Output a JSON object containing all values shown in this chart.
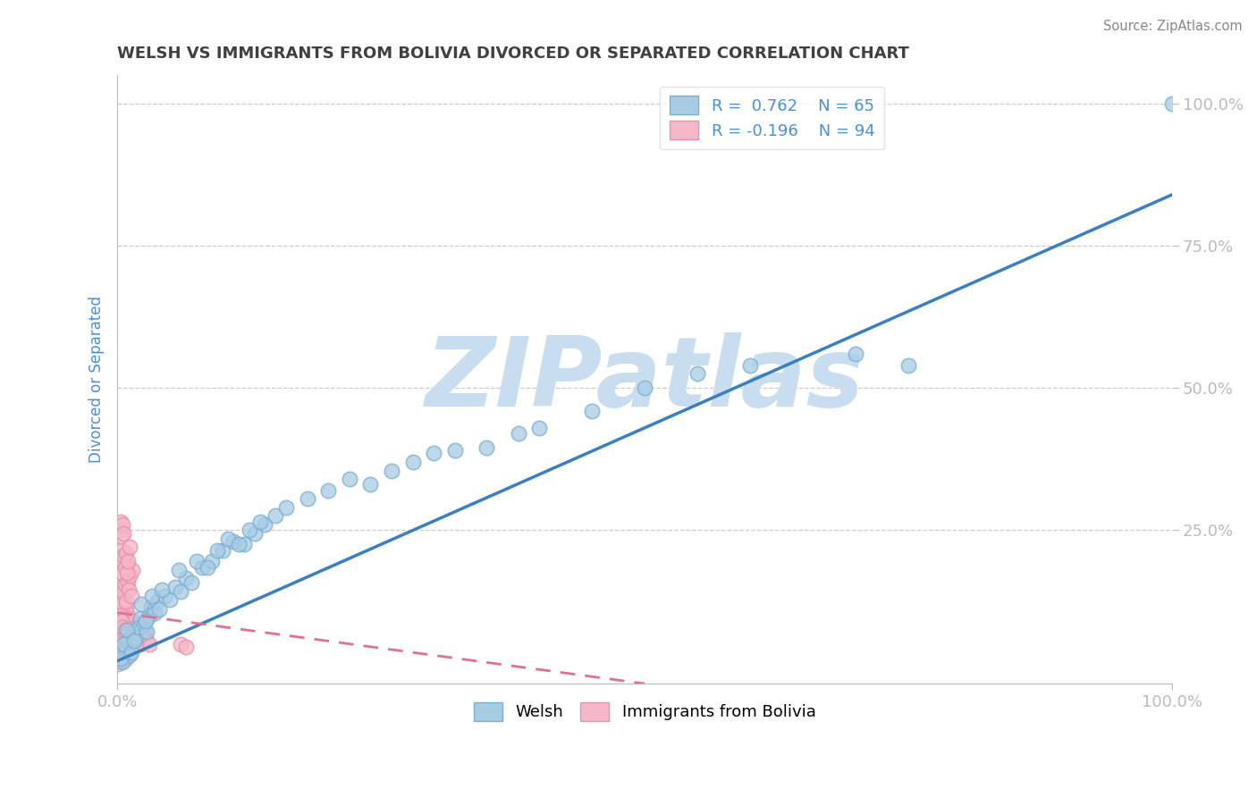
{
  "title": "WELSH VS IMMIGRANTS FROM BOLIVIA DIVORCED OR SEPARATED CORRELATION CHART",
  "source": "Source: ZipAtlas.com",
  "ylabel": "Divorced or Separated",
  "xlim": [
    0,
    1.0
  ],
  "ylim": [
    -0.02,
    1.05
  ],
  "ytick_labels": [
    "25.0%",
    "50.0%",
    "75.0%",
    "100.0%"
  ],
  "ytick_vals": [
    0.25,
    0.5,
    0.75,
    1.0
  ],
  "xtick_labels": [
    "0.0%",
    "100.0%"
  ],
  "xtick_vals": [
    0.0,
    1.0
  ],
  "legend_R_welsh": "R =  0.762",
  "legend_N_welsh": "N = 65",
  "legend_R_bolivia": "R = -0.196",
  "legend_N_bolivia": "N = 94",
  "welsh_color": "#a8cce4",
  "bolivia_color": "#f5b8c8",
  "welsh_edge_color": "#7aafd4",
  "bolivia_edge_color": "#e990aa",
  "welsh_line_color": "#3a7fc1",
  "bolivia_line_color": "#e07090",
  "title_color": "#404040",
  "axis_label_color": "#4a90d9",
  "tick_label_color": "#4a90d9",
  "watermark": "ZIPatlas",
  "watermark_color": "#c8ddf0",
  "welsh_line_x0": 0.0,
  "welsh_line_y0": 0.02,
  "welsh_line_x1": 1.0,
  "welsh_line_y1": 0.84,
  "bolivia_line_x0": 0.0,
  "bolivia_line_y0": 0.105,
  "bolivia_line_x1": 0.5,
  "bolivia_line_y1": -0.02,
  "welsh_x": [
    0.005,
    0.008,
    0.01,
    0.012,
    0.015,
    0.018,
    0.02,
    0.022,
    0.025,
    0.028,
    0.03,
    0.032,
    0.035,
    0.038,
    0.04,
    0.045,
    0.05,
    0.055,
    0.06,
    0.065,
    0.07,
    0.08,
    0.09,
    0.1,
    0.11,
    0.12,
    0.13,
    0.14,
    0.15,
    0.16,
    0.18,
    0.2,
    0.22,
    0.24,
    0.26,
    0.28,
    0.3,
    0.32,
    0.35,
    0.38,
    0.4,
    0.45,
    0.5,
    0.55,
    0.6,
    0.7,
    0.75,
    0.003,
    0.006,
    0.009,
    0.013,
    0.016,
    0.023,
    0.027,
    0.033,
    0.042,
    0.058,
    0.075,
    0.085,
    0.095,
    0.105,
    0.115,
    0.125,
    0.135,
    1.0
  ],
  "welsh_y": [
    0.018,
    0.04,
    0.055,
    0.03,
    0.07,
    0.06,
    0.08,
    0.095,
    0.085,
    0.072,
    0.1,
    0.115,
    0.105,
    0.125,
    0.11,
    0.135,
    0.128,
    0.15,
    0.142,
    0.165,
    0.158,
    0.185,
    0.195,
    0.215,
    0.23,
    0.225,
    0.245,
    0.26,
    0.275,
    0.29,
    0.305,
    0.32,
    0.34,
    0.33,
    0.355,
    0.37,
    0.385,
    0.39,
    0.395,
    0.42,
    0.43,
    0.46,
    0.5,
    0.525,
    0.54,
    0.56,
    0.54,
    0.025,
    0.05,
    0.075,
    0.035,
    0.055,
    0.12,
    0.09,
    0.135,
    0.145,
    0.18,
    0.195,
    0.185,
    0.215,
    0.235,
    0.225,
    0.25,
    0.265,
    1.0
  ],
  "bolivia_x": [
    0.001,
    0.002,
    0.002,
    0.003,
    0.003,
    0.004,
    0.004,
    0.005,
    0.005,
    0.006,
    0.006,
    0.007,
    0.007,
    0.008,
    0.008,
    0.009,
    0.009,
    0.01,
    0.01,
    0.011,
    0.011,
    0.012,
    0.012,
    0.013,
    0.013,
    0.014,
    0.015,
    0.016,
    0.017,
    0.018,
    0.019,
    0.02,
    0.021,
    0.022,
    0.023,
    0.024,
    0.025,
    0.026,
    0.028,
    0.03,
    0.002,
    0.003,
    0.004,
    0.005,
    0.006,
    0.007,
    0.008,
    0.009,
    0.01,
    0.011,
    0.012,
    0.013,
    0.014,
    0.003,
    0.004,
    0.005,
    0.006,
    0.007,
    0.008,
    0.009,
    0.01,
    0.002,
    0.003,
    0.004,
    0.005,
    0.006,
    0.001,
    0.002,
    0.003,
    0.004,
    0.005,
    0.006,
    0.007,
    0.008,
    0.001,
    0.002,
    0.003,
    0.06,
    0.065,
    0.001,
    0.002,
    0.003,
    0.004,
    0.005,
    0.006,
    0.007,
    0.008,
    0.009,
    0.01,
    0.012,
    0.015,
    0.018,
    0.022,
    0.012
  ],
  "bolivia_y": [
    0.05,
    0.08,
    0.03,
    0.095,
    0.045,
    0.11,
    0.06,
    0.13,
    0.07,
    0.09,
    0.12,
    0.055,
    0.1,
    0.075,
    0.115,
    0.065,
    0.105,
    0.045,
    0.085,
    0.07,
    0.095,
    0.06,
    0.085,
    0.07,
    0.05,
    0.09,
    0.075,
    0.065,
    0.08,
    0.055,
    0.07,
    0.06,
    0.085,
    0.05,
    0.075,
    0.065,
    0.06,
    0.07,
    0.055,
    0.05,
    0.15,
    0.13,
    0.12,
    0.175,
    0.14,
    0.155,
    0.125,
    0.19,
    0.16,
    0.145,
    0.17,
    0.135,
    0.18,
    0.2,
    0.215,
    0.195,
    0.205,
    0.185,
    0.21,
    0.175,
    0.195,
    0.25,
    0.265,
    0.24,
    0.26,
    0.245,
    0.035,
    0.025,
    0.04,
    0.02,
    0.035,
    0.03,
    0.045,
    0.025,
    0.015,
    0.02,
    0.03,
    0.05,
    0.045,
    0.085,
    0.1,
    0.07,
    0.09,
    0.08,
    0.06,
    0.075,
    0.065,
    0.055,
    0.07,
    0.06,
    0.055,
    0.05,
    0.065,
    0.22
  ]
}
